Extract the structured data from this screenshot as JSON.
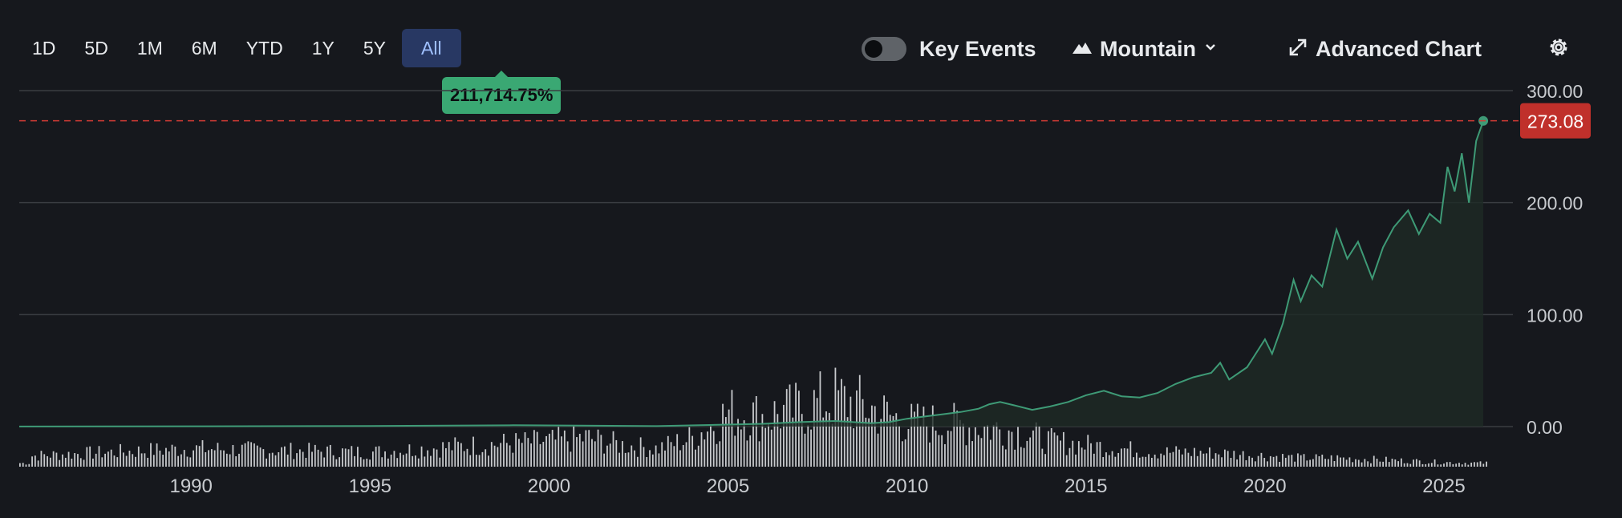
{
  "range_tabs": [
    {
      "label": "1D",
      "active": false
    },
    {
      "label": "5D",
      "active": false
    },
    {
      "label": "1M",
      "active": false
    },
    {
      "label": "6M",
      "active": false
    },
    {
      "label": "YTD",
      "active": false
    },
    {
      "label": "1Y",
      "active": false
    },
    {
      "label": "5Y",
      "active": false
    },
    {
      "label": "All",
      "active": true
    }
  ],
  "tooltip": {
    "text": "211,714.75%"
  },
  "toolbar": {
    "key_events_label": "Key Events",
    "key_events_on": false,
    "chart_style_label": "Mountain",
    "chart_style_icon": "mountain-icon",
    "chart_style_dropdown_icon": "chevron-down-icon",
    "advanced_chart_label": "Advanced Chart",
    "advanced_chart_icon": "expand-icon",
    "settings_icon": "gear-icon"
  },
  "colors": {
    "background": "#16181d",
    "line": "#3e9a76",
    "area_fill": "#1e2a25",
    "price_tag": "#c0302b",
    "reference_line": "#d23b35",
    "gridline": "#3a3d42",
    "volume": "#c8cacd",
    "active_tab": "#283863",
    "tooltip": "#3aa873"
  },
  "chart_data": {
    "type": "area",
    "title": "",
    "xlabel": "",
    "ylabel": "",
    "x_tick_labels": [
      "1990",
      "1995",
      "2000",
      "2005",
      "2010",
      "2015",
      "2020",
      "2025"
    ],
    "y_tick_labels": [
      "300.00",
      "200.00",
      "100.00",
      "0.00"
    ],
    "ylim": [
      0,
      300
    ],
    "xlim": [
      1985.2,
      2026.3
    ],
    "grid": true,
    "current_price": {
      "value": 273.08,
      "label": "273.08"
    },
    "series": [
      {
        "x": [
          1985.2,
          1990,
          1995,
          1999,
          2003,
          2005,
          2006,
          2007,
          2008,
          2009,
          2009.5,
          2010,
          2010.5,
          2011,
          2011.5,
          2012,
          2012.3,
          2012.6,
          2013,
          2013.5,
          2014,
          2014.5,
          2015,
          2015.5,
          2016,
          2016.5,
          2017,
          2017.5,
          2018,
          2018.5,
          2018.75,
          2019,
          2019.5,
          2020,
          2020.2,
          2020.5,
          2020.8,
          2021,
          2021.3,
          2021.6,
          2022,
          2022.3,
          2022.6,
          2023,
          2023.3,
          2023.6,
          2024,
          2024.3,
          2024.6,
          2024.9,
          2025.1,
          2025.3,
          2025.5,
          2025.7,
          2025.9,
          2026.1
        ],
        "y": [
          0.1,
          0.3,
          0.5,
          1.2,
          0.4,
          1.8,
          2.5,
          4,
          5,
          3,
          4,
          7,
          9,
          11,
          13,
          16,
          20,
          22,
          19,
          15,
          18,
          22,
          28,
          32,
          27,
          26,
          30,
          38,
          44,
          48,
          57,
          42,
          53,
          78,
          65,
          92,
          131,
          112,
          135,
          125,
          176,
          150,
          165,
          132,
          160,
          178,
          193,
          172,
          190,
          182,
          232,
          210,
          244,
          200,
          255,
          273
        ]
      }
    ],
    "volume": {
      "note": "relative trading volume bars along the bottom strip (scale not labeled)",
      "x": [
        1985.5,
        1990,
        1995,
        1998,
        2000,
        2001,
        2002,
        2003,
        2004,
        2005,
        2006,
        2007,
        2008,
        2009,
        2010,
        2011,
        2012,
        2013,
        2014,
        2015,
        2016,
        2017,
        2018,
        2019,
        2020,
        2021,
        2022,
        2023,
        2024,
        2025,
        2026
      ],
      "y": [
        0.15,
        0.25,
        0.2,
        0.3,
        0.35,
        0.4,
        0.3,
        0.25,
        0.4,
        0.75,
        0.7,
        0.8,
        0.95,
        0.8,
        0.6,
        0.6,
        0.55,
        0.5,
        0.35,
        0.3,
        0.25,
        0.2,
        0.2,
        0.18,
        0.15,
        0.12,
        0.12,
        0.1,
        0.08,
        0.06,
        0.05
      ]
    }
  }
}
